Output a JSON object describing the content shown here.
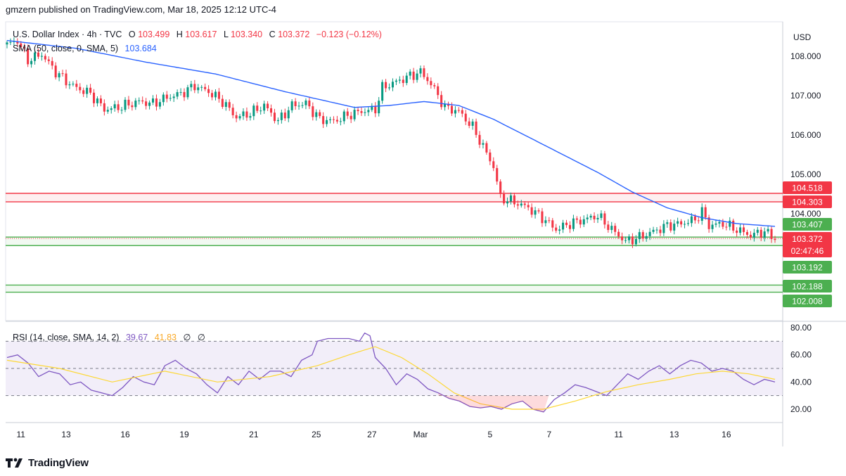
{
  "header": {
    "text": "gmzern published on TradingView.com, Mar 18, 2025 12:12 UTC-4"
  },
  "currency": "USD",
  "legend": {
    "symbol": "U.S. Dollar Index · 4h · TVC",
    "o_label": "O",
    "o_value": "103.499",
    "h_label": "H",
    "h_value": "103.617",
    "l_label": "L",
    "l_value": "103.340",
    "c_label": "C",
    "c_value": "103.372",
    "change": "−0.123 (−0.12%)",
    "sma_label": "SMA (50, close, 0, SMA, 5)",
    "sma_value": "103.684",
    "rsi_label": "RSI (14, close, SMA, 14, 2)",
    "rsi_value": "39.67",
    "rsi_ma_value": "41.83",
    "rsi_extra1": "∅",
    "rsi_extra2": "∅"
  },
  "footer": {
    "brand": "TradingView"
  },
  "colors": {
    "up": "#089981",
    "down": "#f23645",
    "sma": "#2962ff",
    "rsi": "#7e57c2",
    "rsi_ma": "#fdd835",
    "resistance": "#f23645",
    "support": "#4caf50"
  },
  "chart_data": [
    {
      "type": "candlestick",
      "title": "U.S. Dollar Index · 4h · TVC",
      "ylim": [
        101.0,
        108.6
      ],
      "y_ticks": [
        "108.000",
        "107.000",
        "106.000",
        "105.000",
        "104.000"
      ],
      "x_ticks": [
        "11",
        "13",
        "16",
        "19",
        "21",
        "25",
        "27",
        "Mar",
        "5",
        "7",
        "11",
        "13",
        "16"
      ],
      "x_tick_index": [
        4,
        17,
        34,
        51,
        71,
        89,
        105,
        119,
        139,
        156,
        176,
        192,
        207
      ],
      "price_path": [
        [
          0,
          108.3
        ],
        [
          3,
          108.4
        ],
        [
          6,
          107.9
        ],
        [
          10,
          108.05
        ],
        [
          14,
          107.6
        ],
        [
          18,
          107.3
        ],
        [
          20,
          107.2
        ],
        [
          24,
          107.05
        ],
        [
          28,
          106.65
        ],
        [
          32,
          106.7
        ],
        [
          38,
          106.85
        ],
        [
          42,
          106.8
        ],
        [
          46,
          106.95
        ],
        [
          50,
          107.05
        ],
        [
          54,
          107.25
        ],
        [
          58,
          107.1
        ],
        [
          62,
          106.85
        ],
        [
          66,
          106.45
        ],
        [
          70,
          106.55
        ],
        [
          74,
          106.75
        ],
        [
          78,
          106.35
        ],
        [
          82,
          106.75
        ],
        [
          86,
          106.8
        ],
        [
          90,
          106.4
        ],
        [
          94,
          106.35
        ],
        [
          98,
          106.5
        ],
        [
          102,
          106.6
        ],
        [
          106,
          106.65
        ],
        [
          108,
          107.2
        ],
        [
          112,
          107.35
        ],
        [
          116,
          107.5
        ],
        [
          119,
          107.6
        ],
        [
          122,
          107.3
        ],
        [
          124,
          107.0
        ],
        [
          126,
          106.7
        ],
        [
          130,
          106.6
        ],
        [
          134,
          106.2
        ],
        [
          137,
          105.7
        ],
        [
          140,
          105.2
        ],
        [
          142,
          104.4
        ],
        [
          146,
          104.3
        ],
        [
          150,
          104.15
        ],
        [
          154,
          103.9
        ],
        [
          158,
          103.6
        ],
        [
          162,
          103.75
        ],
        [
          166,
          103.85
        ],
        [
          170,
          103.95
        ],
        [
          174,
          103.6
        ],
        [
          178,
          103.3
        ],
        [
          182,
          103.4
        ],
        [
          186,
          103.55
        ],
        [
          190,
          103.7
        ],
        [
          194,
          103.75
        ],
        [
          198,
          103.85
        ],
        [
          200,
          104.05
        ],
        [
          202,
          103.7
        ],
        [
          206,
          103.75
        ],
        [
          210,
          103.6
        ],
        [
          214,
          103.45
        ],
        [
          218,
          103.55
        ],
        [
          221,
          103.37
        ]
      ],
      "sma": [
        [
          0,
          108.4
        ],
        [
          20,
          108.2
        ],
        [
          40,
          107.85
        ],
        [
          60,
          107.55
        ],
        [
          80,
          107.1
        ],
        [
          100,
          106.7
        ],
        [
          110,
          106.75
        ],
        [
          120,
          106.85
        ],
        [
          130,
          106.75
        ],
        [
          140,
          106.4
        ],
        [
          150,
          105.95
        ],
        [
          160,
          105.5
        ],
        [
          170,
          105.05
        ],
        [
          180,
          104.55
        ],
        [
          190,
          104.15
        ],
        [
          200,
          103.9
        ],
        [
          210,
          103.75
        ],
        [
          221,
          103.68
        ]
      ],
      "horizontal_levels": [
        {
          "value": 104.518,
          "label": "104.518",
          "kind": "resistance"
        },
        {
          "value": 104.303,
          "label": "104.303",
          "kind": "resistance"
        },
        {
          "value": 103.407,
          "label": "103.407",
          "kind": "support"
        },
        {
          "value": 103.192,
          "label": "103.192",
          "kind": "support"
        },
        {
          "value": 102.188,
          "label": "102.188",
          "kind": "support"
        },
        {
          "value": 102.008,
          "label": "102.008",
          "kind": "support"
        }
      ],
      "last_price": {
        "value": 103.372,
        "label": "103.372",
        "countdown": "02:47:46"
      }
    },
    {
      "type": "line",
      "title": "RSI (14, close, SMA, 14, 2)",
      "ylim": [
        14,
        80
      ],
      "y_ticks": [
        "80.00",
        "60.00",
        "40.00",
        "20.00"
      ],
      "bands": {
        "upper": 70,
        "middle": 50,
        "lower": 30
      },
      "series": [
        {
          "key": "rsi",
          "points": [
            [
              0,
              58
            ],
            [
              4,
              60
            ],
            [
              8,
              54
            ],
            [
              12,
              44
            ],
            [
              16,
              48
            ],
            [
              20,
              46
            ],
            [
              24,
              38
            ],
            [
              28,
              40
            ],
            [
              32,
              34
            ],
            [
              36,
              32
            ],
            [
              40,
              30
            ],
            [
              44,
              36
            ],
            [
              48,
              44
            ],
            [
              52,
              40
            ],
            [
              56,
              38
            ],
            [
              60,
              52
            ],
            [
              64,
              56
            ],
            [
              68,
              50
            ],
            [
              72,
              46
            ],
            [
              76,
              38
            ],
            [
              80,
              32
            ],
            [
              84,
              44
            ],
            [
              88,
              38
            ],
            [
              92,
              48
            ],
            [
              96,
              42
            ],
            [
              100,
              48
            ],
            [
              104,
              48
            ],
            [
              108,
              44
            ],
            [
              112,
              56
            ],
            [
              116,
              60
            ],
            [
              118,
              70
            ],
            [
              122,
              72
            ],
            [
              126,
              72
            ],
            [
              130,
              72
            ],
            [
              134,
              70
            ],
            [
              136,
              76
            ],
            [
              138,
              74
            ],
            [
              140,
              58
            ],
            [
              144,
              50
            ],
            [
              148,
              38
            ],
            [
              152,
              46
            ],
            [
              156,
              42
            ],
            [
              160,
              35
            ],
            [
              164,
              32
            ],
            [
              168,
              28
            ],
            [
              172,
              26
            ],
            [
              176,
              22
            ],
            [
              180,
              21
            ],
            [
              184,
              22
            ],
            [
              188,
              20
            ],
            [
              192,
              24
            ],
            [
              196,
              26
            ],
            [
              200,
              20
            ],
            [
              204,
              18
            ],
            [
              208,
              27
            ],
            [
              212,
              32
            ],
            [
              216,
              38
            ],
            [
              220,
              36
            ],
            [
              224,
              33
            ],
            [
              228,
              30
            ],
            [
              232,
              38
            ],
            [
              236,
              46
            ],
            [
              240,
              42
            ],
            [
              244,
              48
            ],
            [
              248,
              52
            ],
            [
              252,
              46
            ],
            [
              256,
              52
            ],
            [
              260,
              56
            ],
            [
              264,
              54
            ],
            [
              268,
              48
            ],
            [
              272,
              50
            ],
            [
              276,
              48
            ],
            [
              280,
              42
            ],
            [
              284,
              38
            ],
            [
              288,
              42
            ],
            [
              292,
              40
            ]
          ]
        },
        {
          "key": "rsi_ma",
          "points": [
            [
              0,
              56
            ],
            [
              20,
              50
            ],
            [
              40,
              40
            ],
            [
              60,
              48
            ],
            [
              80,
              40
            ],
            [
              100,
              44
            ],
            [
              118,
              52
            ],
            [
              130,
              60
            ],
            [
              140,
              66
            ],
            [
              150,
              58
            ],
            [
              160,
              46
            ],
            [
              170,
              32
            ],
            [
              180,
              24
            ],
            [
              192,
              20
            ],
            [
              204,
              20
            ],
            [
              216,
              26
            ],
            [
              228,
              33
            ],
            [
              240,
              38
            ],
            [
              252,
              42
            ],
            [
              262,
              46
            ],
            [
              272,
              48
            ],
            [
              282,
              46
            ],
            [
              292,
              42
            ]
          ]
        }
      ]
    }
  ]
}
